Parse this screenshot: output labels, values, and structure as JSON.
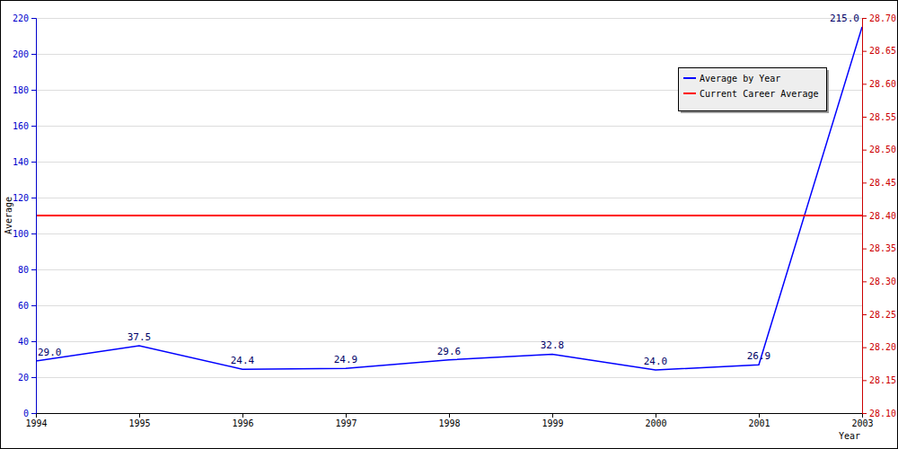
{
  "chart_data": {
    "type": "line",
    "x_label": "Year",
    "y_label": "Average",
    "categories": [
      "1994",
      "1995",
      "1996",
      "1997",
      "1998",
      "1999",
      "2000",
      "2001",
      "2003"
    ],
    "series": [
      {
        "name": "Average by Year",
        "color": "#0000ff",
        "data_labels": true,
        "values": [
          29.0,
          37.5,
          24.4,
          24.9,
          29.6,
          32.8,
          24.0,
          26.9,
          215.0
        ],
        "value_labels": [
          "29.0",
          "37.5",
          "24.4",
          "24.9",
          "29.6",
          "32.8",
          "24.0",
          "26.9",
          "215.0"
        ]
      },
      {
        "name": "Current Career Average",
        "color": "#ff0000",
        "axis": "y2",
        "values": [
          28.4,
          28.4,
          28.4,
          28.4,
          28.4,
          28.4,
          28.4,
          28.4,
          28.4
        ]
      }
    ],
    "ylim": [
      0,
      220
    ],
    "yticks": [
      0,
      20,
      40,
      60,
      80,
      100,
      120,
      140,
      160,
      180,
      200,
      220
    ],
    "y2lim": [
      28.1,
      28.7
    ],
    "y2ticks": [
      {
        "value": 28.1,
        "label": "28.10"
      },
      {
        "value": 28.15,
        "label": "28.15"
      },
      {
        "value": 28.2,
        "label": "28.20"
      },
      {
        "value": 28.25,
        "label": "28.25"
      },
      {
        "value": 28.3,
        "label": "28.30"
      },
      {
        "value": 28.35,
        "label": "28.35"
      },
      {
        "value": 28.4,
        "label": "28.40"
      },
      {
        "value": 28.45,
        "label": "28.45"
      },
      {
        "value": 28.5,
        "label": "28.50"
      },
      {
        "value": 28.55,
        "label": "28.55"
      },
      {
        "value": 28.6,
        "label": "28.60"
      },
      {
        "value": 28.65,
        "label": "28.65"
      },
      {
        "value": 28.7,
        "label": "28.70"
      }
    ],
    "grid": true,
    "legend": "top-right"
  }
}
